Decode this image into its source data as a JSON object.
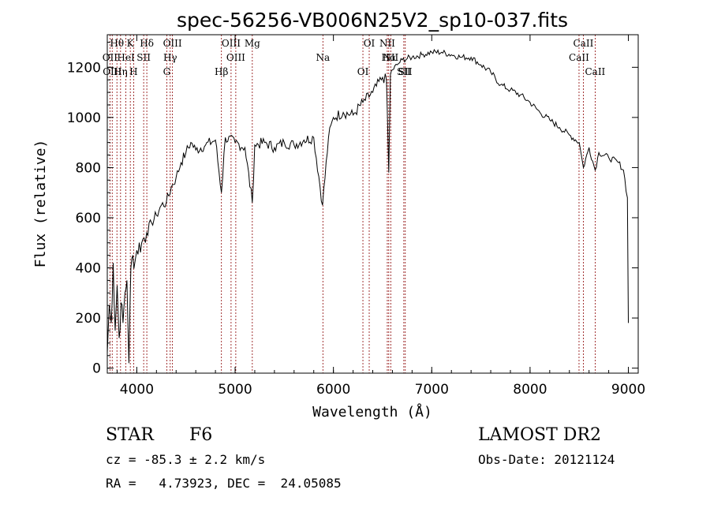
{
  "chart_data": {
    "type": "line",
    "title": "spec-56256-VB006N25V2_sp10-037.fits",
    "xlabel": "Wavelength (Å)",
    "ylabel": "Flux (relative)",
    "xlim": [
      3700,
      9100
    ],
    "ylim": [
      -20,
      1330
    ],
    "xticks": [
      4000,
      5000,
      6000,
      7000,
      8000,
      9000
    ],
    "yticks": [
      0,
      200,
      400,
      600,
      800,
      1000,
      1200
    ],
    "grid": false,
    "series": [
      {
        "x": [
          3700,
          3720,
          3740,
          3760,
          3780,
          3800,
          3820,
          3840,
          3860,
          3880,
          3900,
          3920,
          3940,
          3960,
          3980,
          4000,
          4050,
          4100,
          4150,
          4200,
          4250,
          4300,
          4350,
          4400,
          4450,
          4500,
          4550,
          4600,
          4700,
          4800,
          4861,
          4900,
          5000,
          5100,
          5175,
          5200,
          5300,
          5400,
          5500,
          5600,
          5700,
          5800,
          5890,
          5950,
          6000,
          6100,
          6200,
          6300,
          6400,
          6500,
          6540,
          6563,
          6580,
          6600,
          6650,
          6700,
          6800,
          6900,
          7000,
          7100,
          7200,
          7300,
          7400,
          7500,
          7600,
          7700,
          7800,
          7900,
          8000,
          8100,
          8200,
          8300,
          8400,
          8500,
          8542,
          8600,
          8662,
          8700,
          8800,
          8900,
          8950,
          8990,
          9000
        ],
        "y": [
          60,
          250,
          180,
          420,
          150,
          330,
          120,
          260,
          180,
          300,
          350,
          20,
          400,
          450,
          420,
          470,
          500,
          540,
          580,
          610,
          650,
          660,
          720,
          760,
          820,
          860,
          900,
          870,
          890,
          910,
          700,
          920,
          900,
          880,
          660,
          890,
          900,
          880,
          900,
          890,
          910,
          920,
          650,
          920,
          1000,
          1020,
          1010,
          1060,
          1100,
          1160,
          1150,
          780,
          1170,
          1190,
          1210,
          1230,
          1240,
          1250,
          1260,
          1260,
          1250,
          1240,
          1240,
          1210,
          1180,
          1130,
          1110,
          1090,
          1060,
          1020,
          990,
          960,
          930,
          900,
          800,
          880,
          790,
          860,
          840,
          820,
          790,
          680,
          180
        ]
      }
    ],
    "line_labels": [
      {
        "text": "Hθ",
        "x": 3798
      },
      {
        "text": "OII",
        "x": 3727
      },
      {
        "text": "OIII",
        "x": 3750
      },
      {
        "text": "K",
        "x": 3934
      },
      {
        "text": "HeI",
        "x": 3889
      },
      {
        "text": "Hη",
        "x": 3835
      },
      {
        "text": "Hδ",
        "x": 4102
      },
      {
        "text": "SII",
        "x": 4070
      },
      {
        "text": "H",
        "x": 3968
      },
      {
        "text": "OIII",
        "x": 4363
      },
      {
        "text": "Hγ",
        "x": 4340
      },
      {
        "text": "G",
        "x": 4305
      },
      {
        "text": "OIII",
        "x": 4959
      },
      {
        "text": "OIII",
        "x": 5007
      },
      {
        "text": "Hβ",
        "x": 4861
      },
      {
        "text": "Mg",
        "x": 5175
      },
      {
        "text": "Na",
        "x": 5893
      },
      {
        "text": "OI",
        "x": 6300
      },
      {
        "text": "OI",
        "x": 6364
      },
      {
        "text": "Hα",
        "x": 6563
      },
      {
        "text": "SII",
        "x": 6716
      },
      {
        "text": "NII",
        "x": 6548
      },
      {
        "text": "NII",
        "x": 6583
      },
      {
        "text": "SII",
        "x": 6731
      },
      {
        "text": "CaII",
        "x": 8542
      },
      {
        "text": "CaII",
        "x": 8498
      },
      {
        "text": "CaII",
        "x": 8662
      }
    ],
    "line_positions": [
      3727,
      3750,
      3798,
      3835,
      3889,
      3934,
      3968,
      4070,
      4102,
      4305,
      4340,
      4363,
      4861,
      4959,
      5007,
      5175,
      5893,
      6300,
      6364,
      6548,
      6563,
      6583,
      6716,
      6731,
      8498,
      8542,
      8662
    ]
  },
  "info": {
    "class_label": "STAR",
    "subclass": "F6",
    "survey": "LAMOST DR2",
    "cz": "cz = -85.3 ± 2.2 km/s",
    "obs_date": "Obs-Date: 20121124",
    "coords": "RA =   4.73923, DEC =  24.05085"
  },
  "colors": {
    "spectrum": "#000000",
    "line_markers": "#8b0000"
  }
}
